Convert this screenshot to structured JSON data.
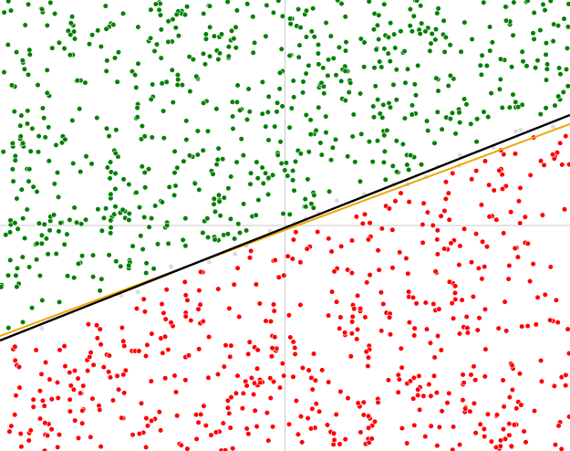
{
  "chart_data": {
    "type": "scatter",
    "title": "",
    "xlabel": "",
    "ylabel": "",
    "xlim": [
      -1,
      1
    ],
    "ylim": [
      -1,
      1
    ],
    "grid": false,
    "axes": {
      "x0": 0,
      "y0": 0
    },
    "colors": {
      "positive": "#008000",
      "negative": "#ff0000",
      "unlabeled": "#dcdcdc",
      "true_boundary": "#000000",
      "learned_boundary": "#f0a500",
      "axis_lines": "#c8c8c8",
      "background": "#ffffff"
    },
    "series": [
      {
        "key": "positive",
        "side": "above",
        "count": 700,
        "seed": 11
      },
      {
        "key": "negative",
        "side": "below",
        "count": 560,
        "seed": 23
      },
      {
        "key": "unlabeled",
        "side": "near",
        "count": 24,
        "seed": 37
      }
    ],
    "lines": [
      {
        "key": "true_boundary",
        "slope": 0.5,
        "intercept": -0.01
      },
      {
        "key": "learned_boundary",
        "slope": 0.47,
        "intercept": -0.02
      }
    ]
  }
}
